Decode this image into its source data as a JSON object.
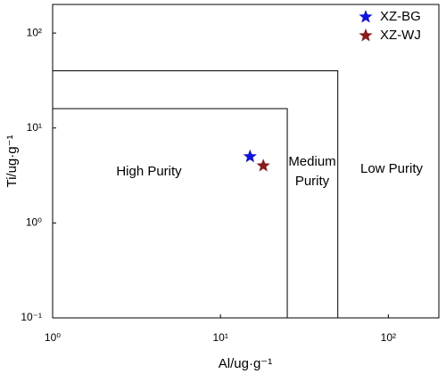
{
  "chart_data": {
    "type": "scatter",
    "xlabel": "Al/ug·g⁻¹",
    "ylabel": "Ti/ug·g⁻¹",
    "xscale": "log",
    "yscale": "log",
    "xlim": [
      1,
      200
    ],
    "ylim": [
      0.1,
      200
    ],
    "xticks": [
      {
        "value": 1,
        "label": "10⁰"
      },
      {
        "value": 10,
        "label": "10¹"
      },
      {
        "value": 100,
        "label": "10²"
      }
    ],
    "yticks": [
      {
        "value": 0.1,
        "label": "10⁻¹"
      },
      {
        "value": 1,
        "label": "10⁰"
      },
      {
        "value": 10,
        "label": "10¹"
      },
      {
        "value": 100,
        "label": "10²"
      }
    ],
    "boundaries": [
      {
        "x": 25,
        "y": 16
      },
      {
        "x": 50,
        "y": 40
      }
    ],
    "annotations": [
      "High Purity",
      "Medium",
      "Purity",
      "Low Purity"
    ],
    "legend": "upper right",
    "series": [
      {
        "name": "XZ-BG",
        "color": "#1010e0",
        "x": [
          15
        ],
        "values": [
          5
        ]
      },
      {
        "name": "XZ-WJ",
        "color": "#8b1a1a",
        "x": [
          18
        ],
        "values": [
          4
        ]
      }
    ]
  }
}
